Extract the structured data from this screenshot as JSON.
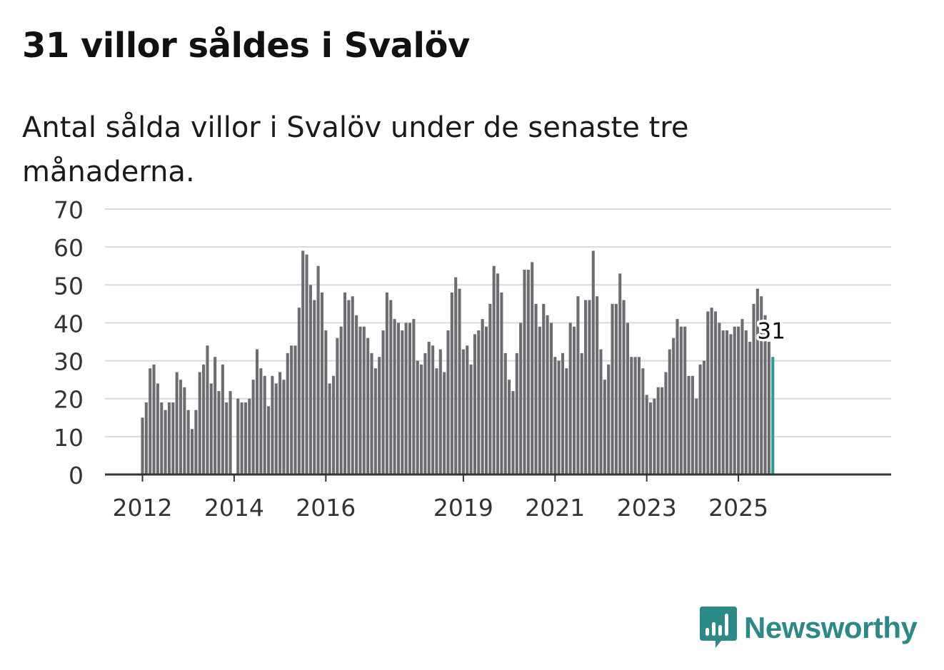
{
  "title": "31 villor såldes i Svalöv",
  "subtitle": "Antal sålda villor i Svalöv under de senaste tre månaderna.",
  "brand": {
    "name": "Newsworthy",
    "icon": "chat-bar-chart-icon",
    "color": "#2b8a86"
  },
  "colors": {
    "bar": "#6d6c70",
    "highlight": "#2a9a93",
    "grid": "#d9d9d9",
    "axis": "#333333"
  },
  "chart_data": {
    "type": "bar",
    "x_start": "2012-01",
    "x_end": "2025-10",
    "ylim": [
      0,
      70
    ],
    "yticks": [
      0,
      10,
      20,
      30,
      40,
      50,
      60,
      70
    ],
    "xticks": [
      "2012",
      "2014",
      "2016",
      "2019",
      "2021",
      "2023",
      "2025"
    ],
    "grid": true,
    "highlight_label": "31",
    "series": [
      {
        "values": [
          15,
          19,
          28,
          29,
          24,
          19,
          17,
          19,
          19,
          27,
          25,
          23,
          17,
          12,
          17,
          27,
          29,
          34,
          24,
          31,
          22,
          29,
          19,
          22,
          null,
          20,
          19,
          19,
          20,
          25,
          33,
          28,
          26,
          18,
          26,
          24,
          27,
          25,
          32,
          34,
          34,
          44,
          59,
          58,
          50,
          46,
          55,
          48,
          38,
          24,
          26,
          36,
          39,
          48,
          46,
          47,
          42,
          39,
          39,
          36,
          32,
          28,
          31,
          38,
          48,
          46,
          41,
          40,
          38,
          40,
          40,
          41,
          30,
          29,
          32,
          35,
          34,
          28,
          33,
          27,
          38,
          48,
          52,
          49,
          33,
          34,
          29,
          37,
          38,
          41,
          39,
          45,
          55,
          53,
          48,
          32,
          25,
          22,
          32,
          40,
          54,
          54,
          56,
          45,
          39,
          45,
          42,
          40,
          31,
          30,
          32,
          28,
          40,
          39,
          47,
          32,
          46,
          46,
          59,
          47,
          33,
          25,
          29,
          45,
          45,
          53,
          46,
          40,
          31,
          31,
          31,
          28,
          21,
          19,
          20,
          23,
          23,
          27,
          33,
          36,
          41,
          39,
          39,
          26,
          26,
          20,
          29,
          30,
          43,
          44,
          43,
          40,
          38,
          38,
          37,
          39,
          39,
          41,
          38,
          35,
          45,
          49,
          47,
          42,
          35,
          31
        ]
      }
    ]
  }
}
